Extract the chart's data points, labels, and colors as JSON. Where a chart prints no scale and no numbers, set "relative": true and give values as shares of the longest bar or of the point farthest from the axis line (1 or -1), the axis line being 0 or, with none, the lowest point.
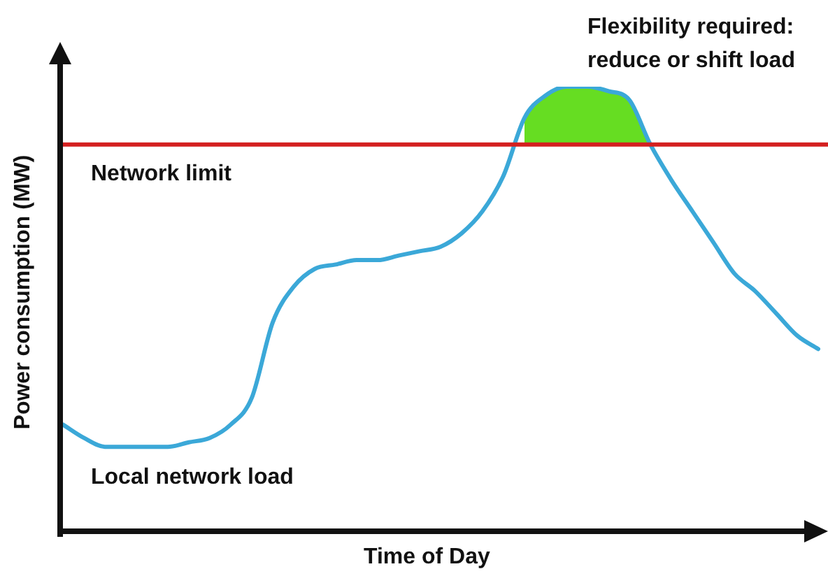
{
  "chart_data": {
    "type": "line",
    "relative": true,
    "xlabel": "Time of Day",
    "ylabel": "Power consumption (MW)",
    "categories": [
      null,
      null,
      null,
      null,
      null,
      null,
      null,
      null,
      null,
      null,
      null,
      null,
      null,
      null,
      null,
      null,
      null,
      null,
      null,
      null,
      null,
      null,
      null,
      null,
      null,
      null,
      null,
      null,
      null,
      null,
      null,
      null,
      null,
      null,
      null,
      null,
      null
    ],
    "series": [
      {
        "name": "Local network load",
        "color": "#3ba8d8",
        "values": [
          0.24,
          0.21,
          0.19,
          0.19,
          0.19,
          0.19,
          0.2,
          0.21,
          0.24,
          0.3,
          0.47,
          0.55,
          0.59,
          0.6,
          0.61,
          0.61,
          0.62,
          0.63,
          0.64,
          0.67,
          0.72,
          0.8,
          0.93,
          0.98,
          1,
          1,
          0.99,
          0.97,
          0.87,
          0.79,
          0.72,
          0.65,
          0.58,
          0.54,
          0.49,
          0.44,
          0.41
        ]
      },
      {
        "type": "area",
        "color": "#66dd22",
        "values": [
          null,
          null,
          null,
          null,
          null,
          null,
          null,
          null,
          null,
          null,
          null,
          null,
          null,
          null,
          null,
          null,
          null,
          null,
          null,
          null,
          null,
          null,
          0.93,
          0.98,
          1,
          1,
          0.99,
          0.97,
          0.87,
          null,
          null,
          null,
          null,
          null,
          null,
          null,
          null
        ]
      }
    ],
    "ref_lines": [
      {
        "axis": "y",
        "value": 0.87,
        "label": "Network limit",
        "color": "#d42020"
      }
    ],
    "annotations": [
      "Flexibility required: reduce or shift load"
    ],
    "legend": false,
    "marker": "none",
    "line_style": "solid"
  }
}
